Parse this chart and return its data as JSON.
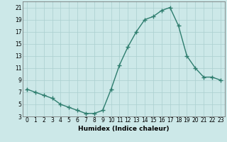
{
  "x": [
    0,
    1,
    2,
    3,
    4,
    5,
    6,
    7,
    8,
    9,
    10,
    11,
    12,
    13,
    14,
    15,
    16,
    17,
    18,
    19,
    20,
    21,
    22,
    23
  ],
  "y": [
    7.5,
    7.0,
    6.5,
    6.0,
    5.0,
    4.5,
    4.0,
    3.5,
    3.5,
    4.0,
    7.5,
    11.5,
    14.5,
    17.0,
    19.0,
    19.5,
    20.5,
    21.0,
    18.0,
    13.0,
    11.0,
    9.5,
    9.5,
    9.0
  ],
  "xlabel": "Humidex (Indice chaleur)",
  "xlim": [
    -0.5,
    23.5
  ],
  "ylim": [
    3,
    22
  ],
  "yticks": [
    3,
    5,
    7,
    9,
    11,
    13,
    15,
    17,
    19,
    21
  ],
  "xticks": [
    0,
    1,
    2,
    3,
    4,
    5,
    6,
    7,
    8,
    9,
    10,
    11,
    12,
    13,
    14,
    15,
    16,
    17,
    18,
    19,
    20,
    21,
    22,
    23
  ],
  "line_color": "#2e7d6e",
  "bg_color": "#cce8e8",
  "grid_color": "#aacfcf",
  "marker": "+",
  "marker_size": 4,
  "linewidth": 1.0
}
